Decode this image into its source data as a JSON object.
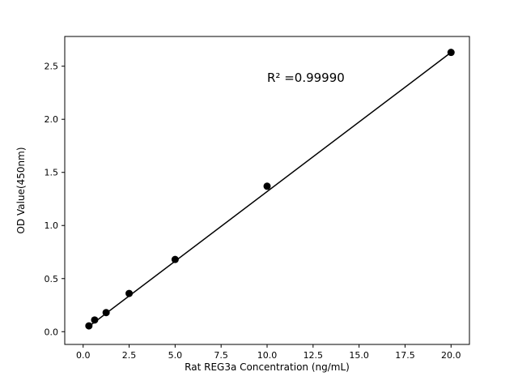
{
  "figure": {
    "background": "#ffffff"
  },
  "chart_data": {
    "type": "scatter",
    "title": "",
    "xlabel": "Rat REG3a Concentration (ng/mL)",
    "ylabel": "OD Value(450nm)",
    "annotation": "R² =0.99990",
    "x": [
      0.313,
      0.625,
      1.25,
      2.5,
      5.0,
      10.0,
      20.0
    ],
    "y": [
      0.055,
      0.11,
      0.18,
      0.36,
      0.68,
      1.37,
      2.63
    ],
    "fit_line": {
      "x": [
        0.313,
        20.0
      ],
      "y": [
        0.05,
        2.63
      ]
    },
    "xlim": [
      -1.0,
      21.0
    ],
    "ylim": [
      -0.12,
      2.78
    ],
    "x_ticks": [
      0.0,
      2.5,
      5.0,
      7.5,
      10.0,
      12.5,
      15.0,
      17.5,
      20.0
    ],
    "x_tick_labels": [
      "0.0",
      "2.5",
      "5.0",
      "7.5",
      "10.0",
      "12.5",
      "15.0",
      "17.5",
      "20.0"
    ],
    "y_ticks": [
      0.0,
      0.5,
      1.0,
      1.5,
      2.0,
      2.5
    ],
    "y_tick_labels": [
      "0.0",
      "0.5",
      "1.0",
      "1.5",
      "2.0",
      "2.5"
    ],
    "marker_color": "#000000",
    "line_color": "#000000",
    "axis_color": "#000000",
    "grid": false,
    "legend": null
  }
}
